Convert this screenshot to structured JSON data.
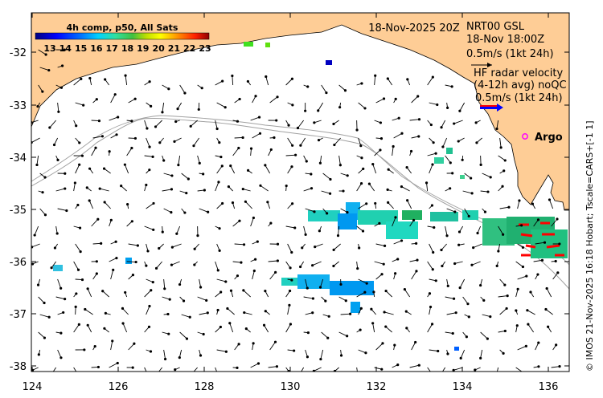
{
  "map": {
    "date_label": "18-Nov-2025 20Z",
    "source_lines": [
      "NRT00 GSL",
      "18-Nov 18:00Z",
      "0.5m/s (1kt 24h)"
    ],
    "hf_lines": [
      "HF radar velocity",
      "(4-12h avg) noQC",
      "0.5m/s (1kt 24h)"
    ],
    "argo_label": "Argo",
    "credit": "© IMOS 21-Nov-2025 16:18 Hobart; Tscale=CARS+[-1 1]",
    "axis": {
      "x_ticks": [
        "124",
        "126",
        "128",
        "130",
        "132",
        "134",
        "136"
      ],
      "y_ticks": [
        "-32",
        "-33",
        "-34",
        "-35",
        "-36",
        "-37",
        "-38"
      ]
    },
    "colorbar": {
      "title": "4h comp, p50, All Sats",
      "ticks": [
        "13",
        "14",
        "15",
        "16",
        "17",
        "18",
        "19",
        "20",
        "21",
        "22",
        "23"
      ]
    },
    "colors": {
      "land": "#fecd96",
      "coast": "#000000",
      "shelf": "#aaaaaa",
      "argo": "#ff00ff",
      "arrow": "#000000",
      "hf_red": "#ff0000",
      "hf_blue": "#0000ff"
    }
  }
}
